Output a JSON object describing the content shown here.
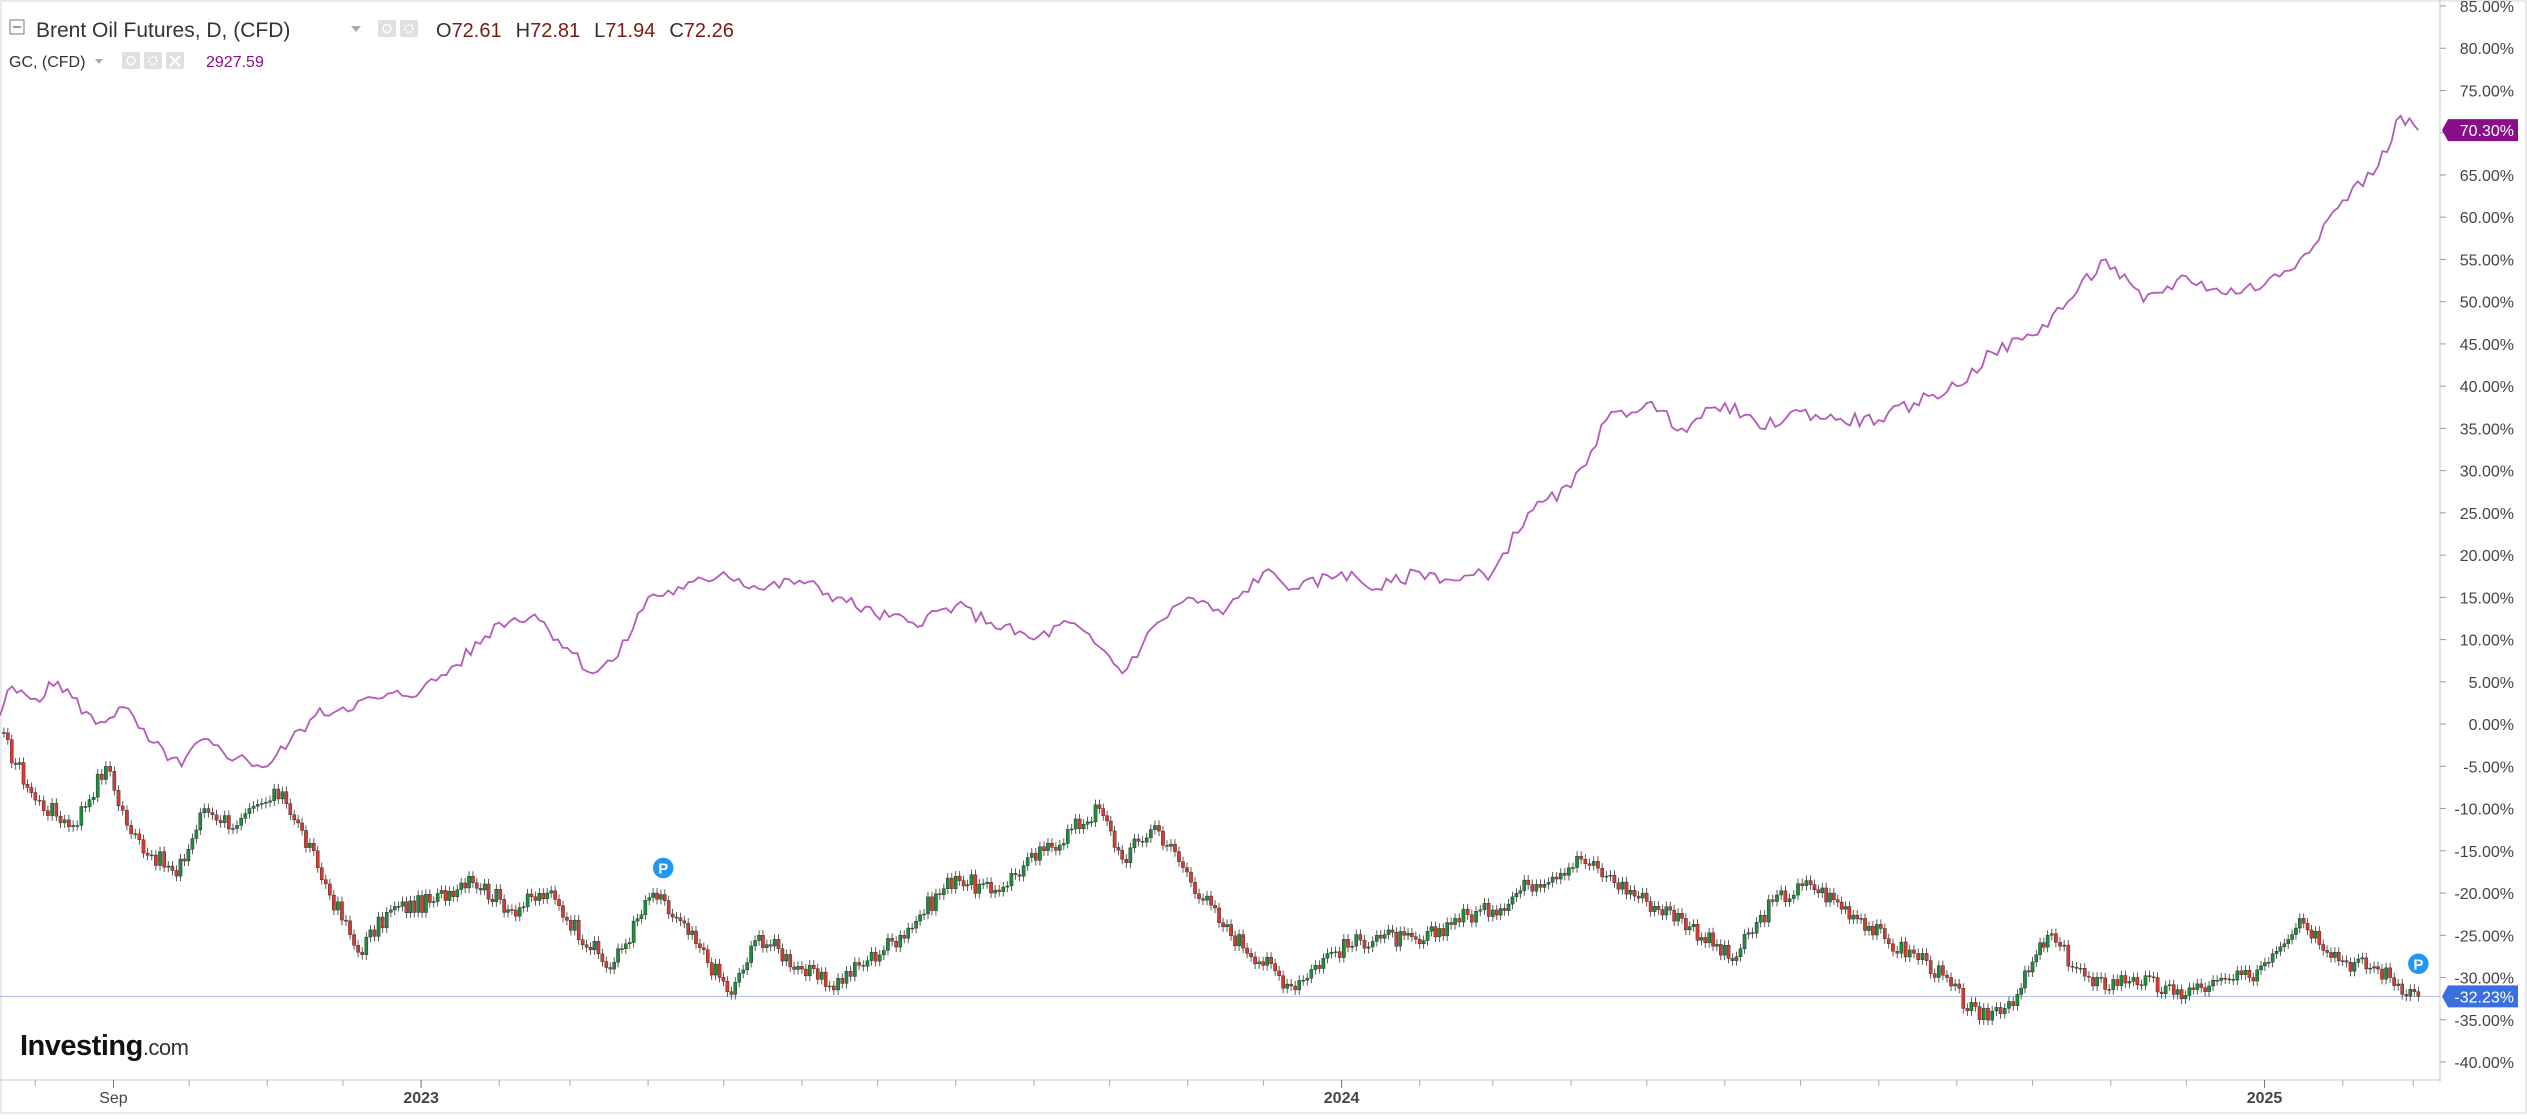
{
  "legend": {
    "main": {
      "symbol": "Brent Oil Futures, D, (CFD)",
      "o_label": "O",
      "o_value": "72.61",
      "h_label": "H",
      "h_value": "72.81",
      "l_label": "L",
      "l_value": "71.94",
      "c_label": "C",
      "c_value": "72.26"
    },
    "overlay": {
      "symbol": "GC, (CFD)",
      "value": "2927.59"
    }
  },
  "watermark": {
    "brand": "Investing",
    "suffix": ".com"
  },
  "markers": [
    {
      "label": "P",
      "date": "2023-04-07",
      "series": "Brent"
    },
    {
      "label": "P",
      "date": "2025-03-03",
      "series": "Brent"
    }
  ],
  "colors": {
    "gold_line": "#b45ab8",
    "gold_badge": "#8a0e8a",
    "brent_badge": "#3b6fe0",
    "brent_ref_line": "#aabfe8",
    "candle_up": "#1e8c3c",
    "candle_down": "#d43c33",
    "marker": "#2196f3",
    "legend_value": "#7a1b12",
    "overlay_value": "#8a0e8a",
    "grid_tick": "#888888",
    "axis_text": "#444444"
  },
  "chart_data": {
    "type": "line",
    "percent_scale": true,
    "yaxis": {
      "min": -40,
      "max": 85,
      "step": 5,
      "tick_labels": [
        "85.00%",
        "80.00%",
        "75.00%",
        "70.00%",
        "65.00%",
        "60.00%",
        "55.00%",
        "50.00%",
        "45.00%",
        "40.00%",
        "35.00%",
        "30.00%",
        "25.00%",
        "20.00%",
        "15.00%",
        "10.00%",
        "5.00%",
        "0.00%",
        "-5.00%",
        "-10.00%",
        "-15.00%",
        "-20.00%",
        "-25.00%",
        "-30.00%",
        "-35.00%",
        "-40.00%"
      ]
    },
    "xaxis": {
      "start": "2022-07-18",
      "end": "2025-03-10",
      "tick_labels": [
        {
          "label": "Sep",
          "date": "2022-09-01"
        },
        {
          "label": "2023",
          "date": "2023-01-01"
        },
        {
          "label": "2024",
          "date": "2024-01-01"
        },
        {
          "label": "2025",
          "date": "2025-01-01"
        }
      ]
    },
    "last_values": {
      "gold_badge": "70.30%",
      "brent_badge": "-32.23%"
    },
    "series": [
      {
        "name": "GC, (CFD)",
        "style": "line",
        "points": [
          [
            "2022-07-18",
            1
          ],
          [
            "2022-07-21",
            4
          ],
          [
            "2022-08-01",
            3
          ],
          [
            "2022-08-10",
            5
          ],
          [
            "2022-08-25",
            0
          ],
          [
            "2022-09-05",
            2
          ],
          [
            "2022-09-15",
            -2
          ],
          [
            "2022-09-28",
            -5
          ],
          [
            "2022-10-05",
            -2
          ],
          [
            "2022-10-20",
            -4
          ],
          [
            "2022-11-01",
            -5
          ],
          [
            "2022-11-10",
            -2
          ],
          [
            "2022-11-20",
            1
          ],
          [
            "2022-12-01",
            2
          ],
          [
            "2022-12-15",
            3
          ],
          [
            "2023-01-01",
            4
          ],
          [
            "2023-01-15",
            7
          ],
          [
            "2023-02-01",
            12
          ],
          [
            "2023-02-15",
            13
          ],
          [
            "2023-02-28",
            9
          ],
          [
            "2023-03-10",
            6
          ],
          [
            "2023-03-20",
            8
          ],
          [
            "2023-04-01",
            15
          ],
          [
            "2023-04-15",
            16
          ],
          [
            "2023-05-01",
            18
          ],
          [
            "2023-05-15",
            16
          ],
          [
            "2023-05-31",
            17
          ],
          [
            "2023-06-15",
            15
          ],
          [
            "2023-06-30",
            13
          ],
          [
            "2023-07-15",
            12
          ],
          [
            "2023-08-01",
            14
          ],
          [
            "2023-08-15",
            12
          ],
          [
            "2023-09-01",
            10
          ],
          [
            "2023-09-15",
            12
          ],
          [
            "2023-10-01",
            8
          ],
          [
            "2023-10-06",
            6
          ],
          [
            "2023-10-20",
            12
          ],
          [
            "2023-11-01",
            15
          ],
          [
            "2023-11-15",
            13
          ],
          [
            "2023-12-01",
            18
          ],
          [
            "2023-12-15",
            16
          ],
          [
            "2024-01-01",
            18
          ],
          [
            "2024-01-15",
            16
          ],
          [
            "2024-02-01",
            18
          ],
          [
            "2024-02-15",
            17
          ],
          [
            "2024-03-01",
            18
          ],
          [
            "2024-03-15",
            25
          ],
          [
            "2024-04-01",
            28
          ],
          [
            "2024-04-15",
            36
          ],
          [
            "2024-05-01",
            38
          ],
          [
            "2024-05-15",
            35
          ],
          [
            "2024-06-01",
            38
          ],
          [
            "2024-06-15",
            35
          ],
          [
            "2024-07-01",
            37
          ],
          [
            "2024-07-15",
            36
          ],
          [
            "2024-08-01",
            36
          ],
          [
            "2024-08-15",
            38
          ],
          [
            "2024-09-01",
            40
          ],
          [
            "2024-09-15",
            44
          ],
          [
            "2024-10-01",
            46
          ],
          [
            "2024-10-15",
            50
          ],
          [
            "2024-10-30",
            55
          ],
          [
            "2024-11-14",
            50
          ],
          [
            "2024-12-01",
            53
          ],
          [
            "2024-12-15",
            51
          ],
          [
            "2025-01-01",
            52
          ],
          [
            "2025-01-15",
            55
          ],
          [
            "2025-02-01",
            62
          ],
          [
            "2025-02-15",
            66
          ],
          [
            "2025-02-24",
            72
          ],
          [
            "2025-03-03",
            70.3
          ]
        ]
      },
      {
        "name": "Brent Oil Futures, D, (CFD)",
        "style": "candlestick",
        "points": [
          [
            "2022-07-18",
            -1
          ],
          [
            "2022-08-01",
            -9
          ],
          [
            "2022-08-16",
            -12
          ],
          [
            "2022-08-29",
            -5
          ],
          [
            "2022-09-08",
            -13
          ],
          [
            "2022-09-26",
            -18
          ],
          [
            "2022-10-07",
            -10
          ],
          [
            "2022-10-20",
            -12
          ],
          [
            "2022-11-07",
            -8
          ],
          [
            "2022-11-21",
            -17
          ],
          [
            "2022-12-07",
            -27
          ],
          [
            "2022-12-20",
            -22
          ],
          [
            "2023-01-06",
            -21
          ],
          [
            "2023-01-20",
            -18
          ],
          [
            "2023-02-06",
            -22
          ],
          [
            "2023-02-20",
            -20
          ],
          [
            "2023-03-17",
            -29
          ],
          [
            "2023-04-03",
            -20
          ],
          [
            "2023-04-20",
            -26
          ],
          [
            "2023-05-04",
            -32
          ],
          [
            "2023-05-15",
            -25
          ],
          [
            "2023-06-01",
            -29
          ],
          [
            "2023-06-12",
            -31
          ],
          [
            "2023-06-27",
            -28
          ],
          [
            "2023-07-10",
            -25
          ],
          [
            "2023-08-01",
            -18
          ],
          [
            "2023-08-15",
            -20
          ],
          [
            "2023-09-05",
            -15
          ],
          [
            "2023-09-27",
            -10
          ],
          [
            "2023-10-06",
            -16
          ],
          [
            "2023-10-19",
            -12
          ],
          [
            "2023-11-15",
            -24
          ],
          [
            "2023-12-12",
            -31
          ],
          [
            "2023-12-28",
            -27
          ],
          [
            "2024-01-15",
            -25
          ],
          [
            "2024-02-01",
            -26
          ],
          [
            "2024-02-15",
            -23
          ],
          [
            "2024-03-01",
            -22
          ],
          [
            "2024-03-15",
            -19
          ],
          [
            "2024-04-05",
            -16
          ],
          [
            "2024-04-15",
            -18
          ],
          [
            "2024-05-01",
            -21
          ],
          [
            "2024-05-15",
            -23
          ],
          [
            "2024-06-04",
            -28
          ],
          [
            "2024-06-20",
            -21
          ],
          [
            "2024-07-05",
            -19
          ],
          [
            "2024-07-25",
            -23
          ],
          [
            "2024-08-05",
            -26
          ],
          [
            "2024-08-20",
            -28
          ],
          [
            "2024-09-10",
            -35
          ],
          [
            "2024-09-25",
            -32
          ],
          [
            "2024-10-07",
            -25
          ],
          [
            "2024-10-25",
            -31
          ],
          [
            "2024-11-10",
            -30
          ],
          [
            "2024-11-26",
            -32
          ],
          [
            "2024-12-10",
            -31
          ],
          [
            "2024-12-26",
            -30
          ],
          [
            "2025-01-15",
            -23
          ],
          [
            "2025-02-01",
            -28
          ],
          [
            "2025-02-15",
            -29
          ],
          [
            "2025-03-03",
            -32.23
          ]
        ]
      }
    ]
  }
}
